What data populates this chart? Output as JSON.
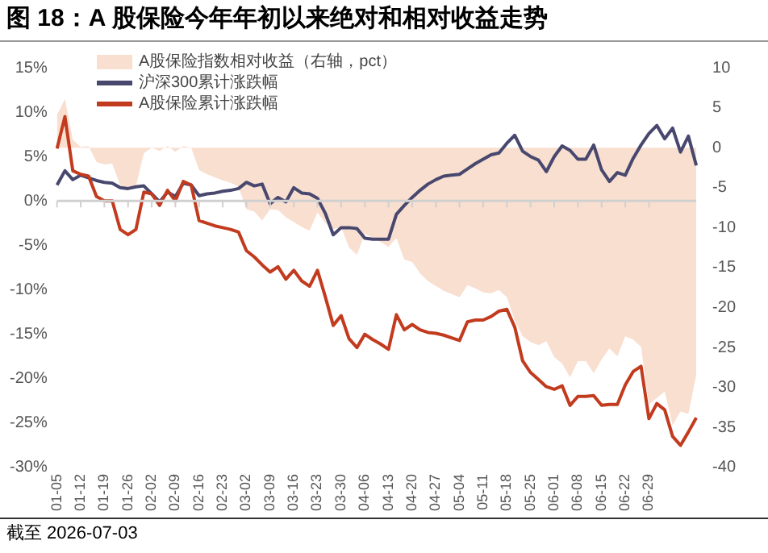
{
  "chart_data": {
    "type": "line",
    "title": "图 18：A 股保险今年年初以来绝对和相对收益走势",
    "annotations": [
      "截至 2026-07-03"
    ],
    "legend": "top left",
    "marker": "none",
    "categories": [
      "01-05",
      null,
      null,
      "01-12",
      null,
      null,
      "01-19",
      null,
      null,
      "01-26",
      null,
      null,
      "02-02",
      null,
      null,
      "02-09",
      null,
      null,
      "02-16",
      null,
      null,
      "02-23",
      null,
      null,
      "03-02",
      null,
      null,
      "03-09",
      null,
      null,
      "03-16",
      null,
      null,
      "03-23",
      null,
      null,
      "03-30",
      null,
      null,
      "04-06",
      null,
      null,
      "04-13",
      null,
      null,
      "04-20",
      null,
      null,
      "04-27",
      null,
      null,
      "05-04",
      null,
      null,
      "05-11",
      null,
      null,
      "05-18",
      null,
      null,
      "05-25",
      null,
      null,
      "06-01",
      null,
      null,
      "06-08",
      null,
      null,
      "06-15",
      null,
      null,
      "06-22",
      null,
      null,
      "06-29",
      null,
      null,
      null,
      null,
      null,
      null
    ],
    "ylim": [
      -30,
      15
    ],
    "yticks": [
      {
        "value": 15,
        "label": "15%"
      },
      {
        "value": 10,
        "label": "10%"
      },
      {
        "value": 5,
        "label": "5%"
      },
      {
        "value": 0,
        "label": "0%"
      },
      {
        "value": -5,
        "label": "-5%"
      },
      {
        "value": -10,
        "label": "-10%"
      },
      {
        "value": -15,
        "label": "-15%"
      },
      {
        "value": -20,
        "label": "-20%"
      },
      {
        "value": -25,
        "label": "-25%"
      },
      {
        "value": -30,
        "label": "-30%"
      }
    ],
    "y2lim": [
      -40,
      10
    ],
    "y2ticks": [
      10,
      5,
      0,
      -5,
      -10,
      -15,
      -20,
      -25,
      -30,
      -35,
      -40
    ],
    "series": [
      {
        "name": "A股保险指数相对收益（右轴，pct）",
        "type": "area",
        "axis": "y2",
        "color": "#f9dfd0",
        "values": [
          4.1,
          6.1,
          1.0,
          0.1,
          0.2,
          -1.8,
          -2.1,
          -2.0,
          -4.7,
          -5.2,
          -4.8,
          -0.7,
          0,
          -0.4,
          0.2,
          -0.5,
          0.2,
          0,
          -2.8,
          -3.3,
          -3.7,
          -4.1,
          -4.4,
          -4.9,
          -7.7,
          -8.0,
          -9.1,
          -7.7,
          -7.8,
          -8.7,
          -9.3,
          -9.9,
          -10.4,
          -8.1,
          -9.4,
          -10.2,
          -9.9,
          -12.5,
          -13.4,
          -10.8,
          -11.3,
          -11.8,
          -12.4,
          -11.3,
          -14.0,
          -14.3,
          -15.7,
          -16.7,
          -17.3,
          -17.9,
          -18.3,
          -18.7,
          -17.2,
          -17.6,
          -18.1,
          -18.2,
          -17.8,
          -18.7,
          -21.6,
          -23.6,
          -24.3,
          -24.7,
          -24.2,
          -26.2,
          -27.0,
          -28.7,
          -26.7,
          -26.7,
          -28.2,
          -26.5,
          -25.1,
          -26.1,
          -23.6,
          -24.0,
          -24.9,
          -32.1,
          -31.3,
          -30.5,
          -34.7,
          -33.0,
          -33.3,
          -28.4
        ]
      },
      {
        "name": "沪深300累计涨跌幅",
        "color": "#48486f",
        "values": [
          1.8,
          3.4,
          2.4,
          2.9,
          2.6,
          2.3,
          2.1,
          2.0,
          1.5,
          1.4,
          1.6,
          1.7,
          0.8,
          -0.1,
          1.0,
          0.5,
          2.0,
          1.8,
          0.6,
          0.8,
          0.9,
          1.1,
          1.2,
          1.4,
          2.1,
          1.7,
          1.9,
          -0.3,
          0.4,
          -0.1,
          1.5,
          0.9,
          0.8,
          0.3,
          -1.4,
          -3.8,
          -3.0,
          -3.0,
          -3.1,
          -4.2,
          -4.3,
          -4.3,
          -4.3,
          -1.5,
          -0.5,
          0.4,
          1.2,
          1.9,
          2.4,
          2.8,
          2.9,
          3.0,
          3.6,
          4.2,
          4.7,
          5.2,
          5.4,
          6.5,
          7.4,
          5.6,
          5.0,
          4.6,
          3.3,
          5.0,
          6.2,
          5.7,
          4.7,
          4.7,
          6.3,
          3.5,
          2.2,
          3.2,
          2.9,
          4.8,
          6.3,
          7.6,
          8.5,
          7.0,
          8.2,
          5.5,
          7.3,
          4.0
        ]
      },
      {
        "name": "A股保险累计涨跌幅",
        "color": "#c23b1f",
        "values": [
          5.9,
          9.5,
          3.4,
          3.0,
          2.8,
          0.5,
          0,
          0,
          -3.2,
          -3.8,
          -3.2,
          1.0,
          0.8,
          -0.5,
          1.2,
          0,
          2.2,
          1.8,
          -2.2,
          -2.5,
          -2.8,
          -3.0,
          -3.2,
          -3.5,
          -5.6,
          -6.3,
          -7.2,
          -8.0,
          -7.4,
          -8.8,
          -7.8,
          -9.0,
          -9.6,
          -7.8,
          -10.8,
          -14.0,
          -12.9,
          -15.5,
          -16.5,
          -15.0,
          -15.6,
          -16.1,
          -16.7,
          -12.8,
          -14.5,
          -13.9,
          -14.5,
          -14.8,
          -14.9,
          -15.1,
          -15.4,
          -15.7,
          -13.6,
          -13.4,
          -13.4,
          -13.0,
          -12.4,
          -12.2,
          -14.2,
          -18.0,
          -19.3,
          -20.1,
          -20.9,
          -21.2,
          -20.8,
          -23.0,
          -22.0,
          -22.0,
          -21.9,
          -23.0,
          -22.9,
          -22.9,
          -20.7,
          -19.2,
          -18.6,
          -24.5,
          -22.8,
          -23.5,
          -26.5,
          -27.5,
          -26.0,
          -24.4
        ]
      }
    ]
  }
}
